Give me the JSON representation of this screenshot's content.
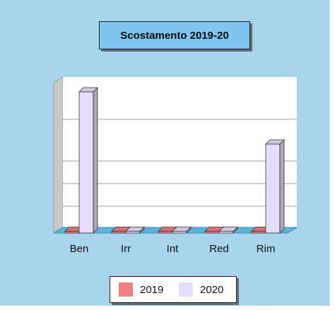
{
  "chart_data": {
    "type": "bar",
    "title": "Scostamento 2019-20",
    "categories": [
      "Ben",
      "Irr",
      "Int",
      "Red",
      "Rim"
    ],
    "series": [
      {
        "name": "2019",
        "values": [
          0,
          0,
          0,
          0,
          0
        ]
      },
      {
        "name": "2020",
        "values": [
          100,
          1,
          0.5,
          0.5,
          63
        ]
      }
    ],
    "ylim": [
      0,
      100
    ],
    "grid": true,
    "legend_position": "bottom",
    "colors": {
      "series_2019": "#f07f82",
      "series_2020": "#e6dcfb",
      "background": "#a9d4ee",
      "floor": "#5ab3d8"
    }
  }
}
